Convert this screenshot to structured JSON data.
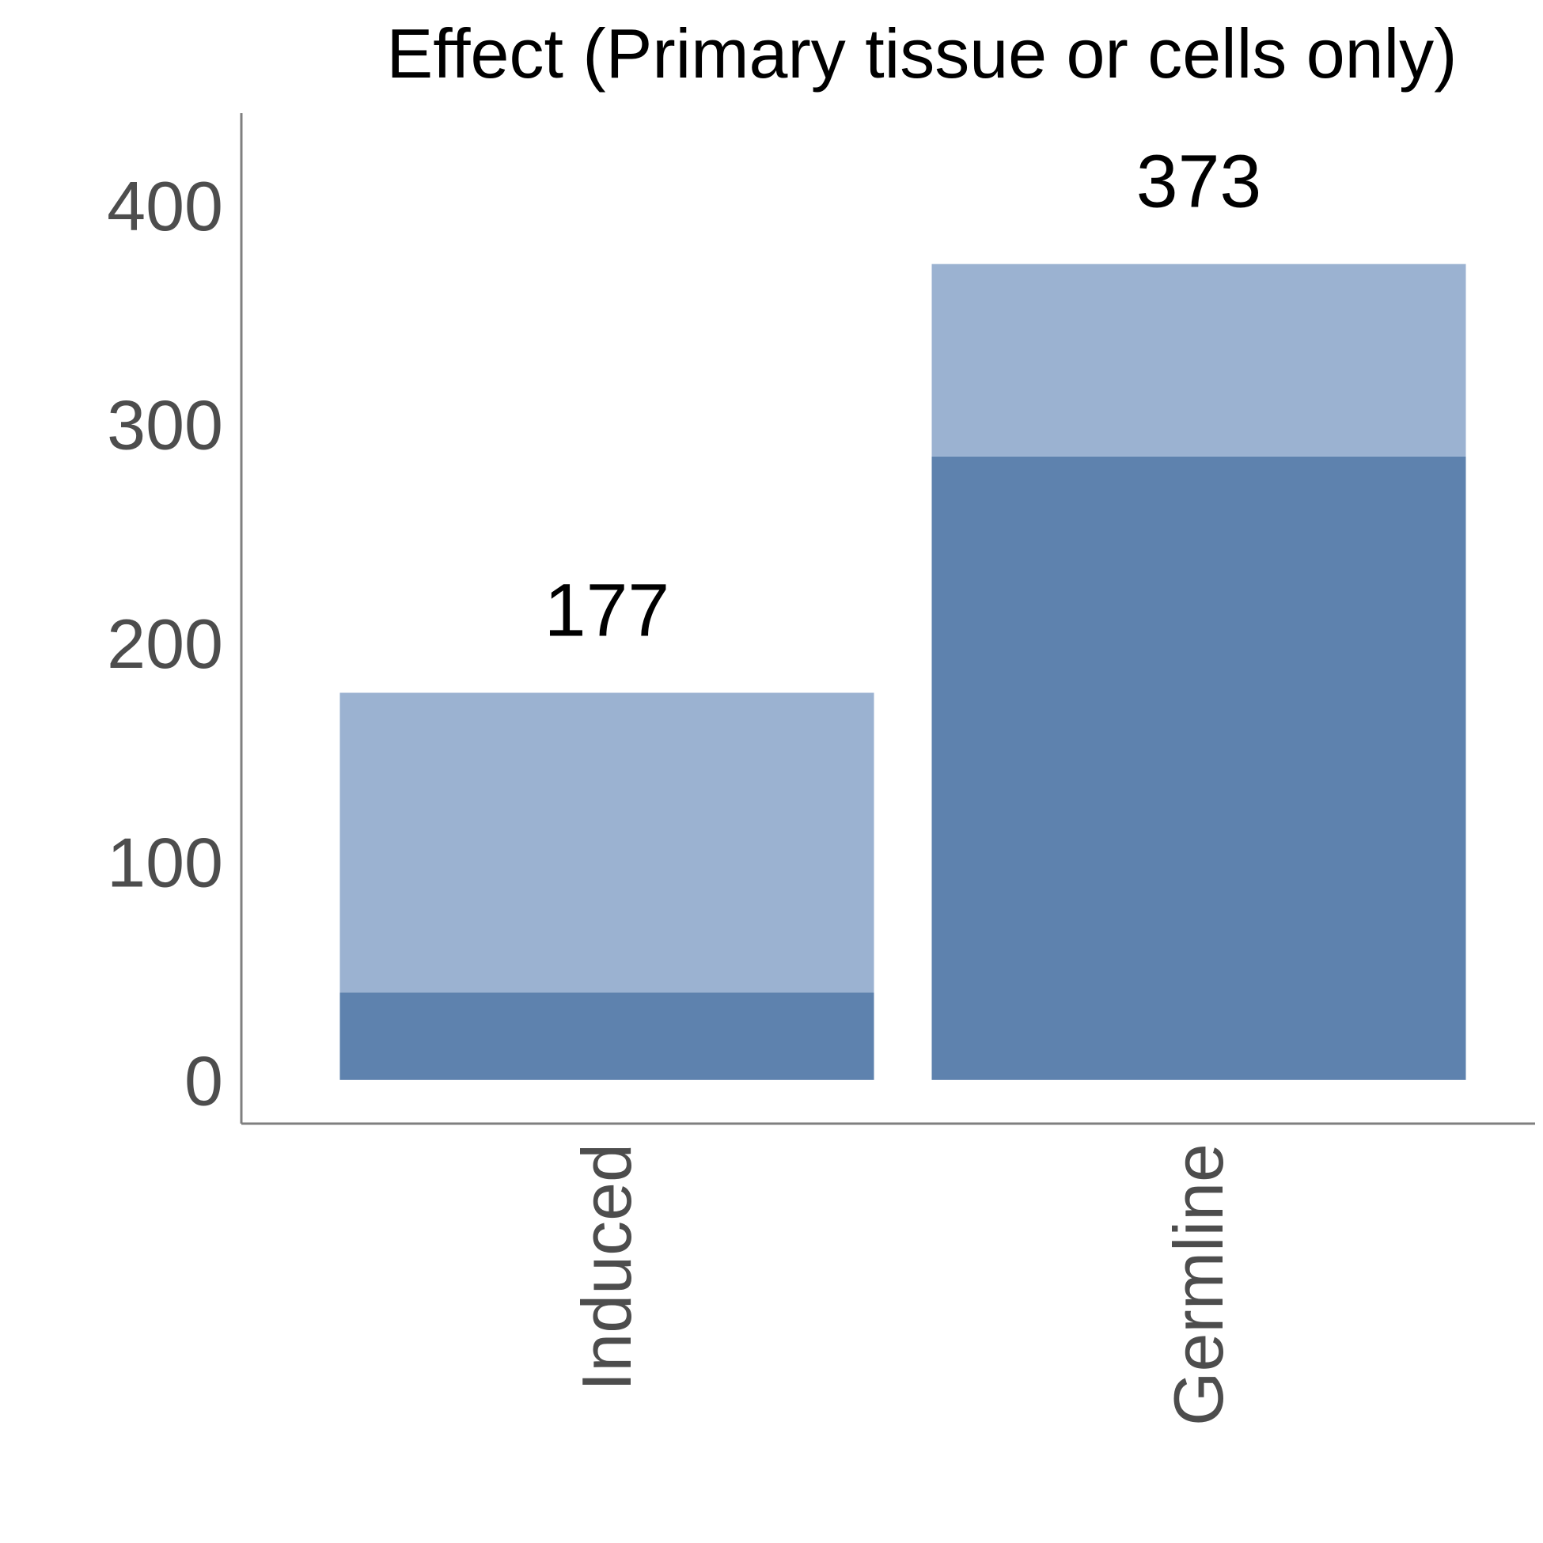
{
  "chart_data": {
    "type": "bar",
    "stacked": true,
    "title": "Effect (Primary tissue or cells only)",
    "xlabel": "",
    "ylabel": "",
    "categories": [
      "Induced",
      "Germline"
    ],
    "series": [
      {
        "values": [
          40,
          285
        ],
        "color": "#5e82ae"
      },
      {
        "values": [
          137,
          88
        ],
        "color": "#9bb2d1"
      }
    ],
    "totals": [
      177,
      373
    ],
    "ylim": [
      -20,
      442
    ],
    "yticks": [
      0,
      100,
      200,
      300,
      400
    ],
    "grid": false,
    "legend": "none"
  }
}
